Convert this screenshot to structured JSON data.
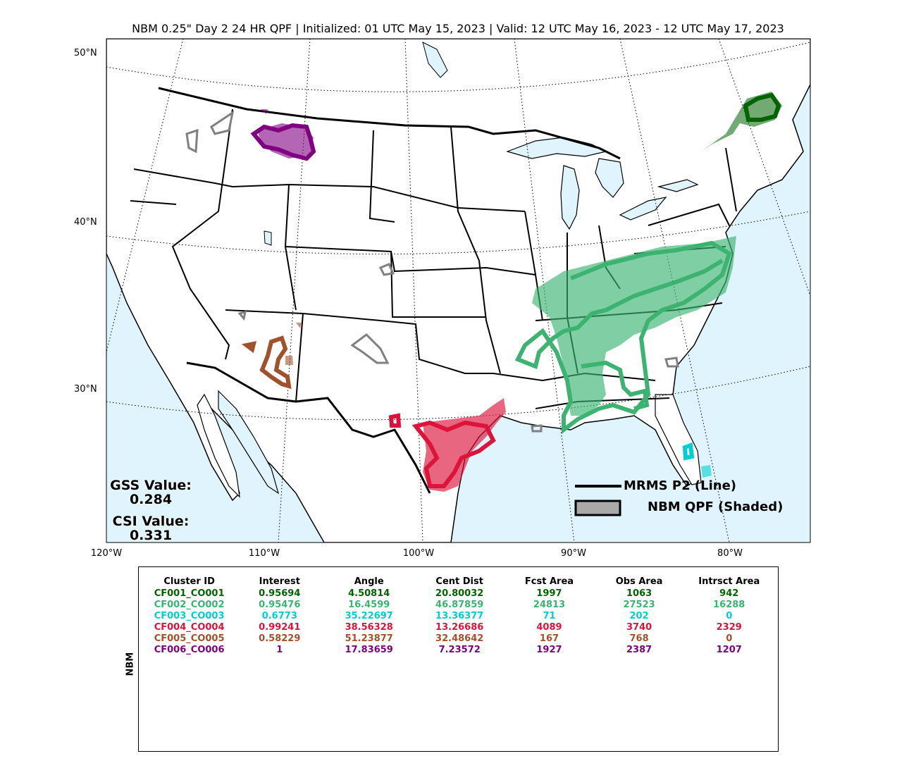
{
  "title": "NBM 0.25\" Day 2 24 HR QPF | Initialized: 01 UTC May 15, 2023 | Valid: 12 UTC May 16, 2023 - 12 UTC May 17, 2023",
  "axes": {
    "lat_labels": [
      "50°N",
      "40°N",
      "30°N"
    ],
    "lon_labels": [
      "120°W",
      "110°W",
      "100°W",
      "90°W",
      "80°W"
    ]
  },
  "scores": {
    "gss_label": "GSS Value:",
    "gss_value": "0.284",
    "csi_label": "CSI Value:",
    "csi_value": "0.331"
  },
  "legend": {
    "line_label": "MRMS P2 (Line)",
    "shaded_label": "NBM QPF (Shaded)"
  },
  "colors": {
    "ocean": "#dff4fd",
    "land": "#ffffff",
    "CF001": "#006400",
    "CF002": "#3cb371",
    "CF003": "#00ced1",
    "CF004": "#dc143c",
    "CF005": "#a0522d",
    "CF006": "#800080",
    "unmatched": "#808080"
  },
  "table": {
    "side_label": "NBM",
    "columns": [
      "Cluster ID",
      "Interest",
      "Angle",
      "Cent Dist",
      "Fcst Area",
      "Obs Area",
      "Intrsct Area"
    ],
    "rows": [
      {
        "id": "CF001_CO001",
        "interest": "0.95694",
        "angle": "4.50814",
        "cent_dist": "20.80032",
        "fcst_area": "1997",
        "obs_area": "1063",
        "intrsct_area": "942",
        "color": "#006400"
      },
      {
        "id": "CF002_CO002",
        "interest": "0.95476",
        "angle": "16.4599",
        "cent_dist": "46.87859",
        "fcst_area": "24813",
        "obs_area": "27523",
        "intrsct_area": "16288",
        "color": "#3cb371"
      },
      {
        "id": "CF003_CO003",
        "interest": "0.6773",
        "angle": "35.22697",
        "cent_dist": "13.36377",
        "fcst_area": "71",
        "obs_area": "202",
        "intrsct_area": "0",
        "color": "#00ced1"
      },
      {
        "id": "CF004_CO004",
        "interest": "0.99241",
        "angle": "38.56328",
        "cent_dist": "13.26686",
        "fcst_area": "4089",
        "obs_area": "3740",
        "intrsct_area": "2329",
        "color": "#dc143c"
      },
      {
        "id": "CF005_CO005",
        "interest": "0.58229",
        "angle": "51.23877",
        "cent_dist": "32.48642",
        "fcst_area": "167",
        "obs_area": "768",
        "intrsct_area": "0",
        "color": "#a0522d"
      },
      {
        "id": "CF006_CO006",
        "interest": "1",
        "angle": "17.83659",
        "cent_dist": "7.23572",
        "fcst_area": "1927",
        "obs_area": "2387",
        "intrsct_area": "1207",
        "color": "#800080"
      }
    ]
  }
}
